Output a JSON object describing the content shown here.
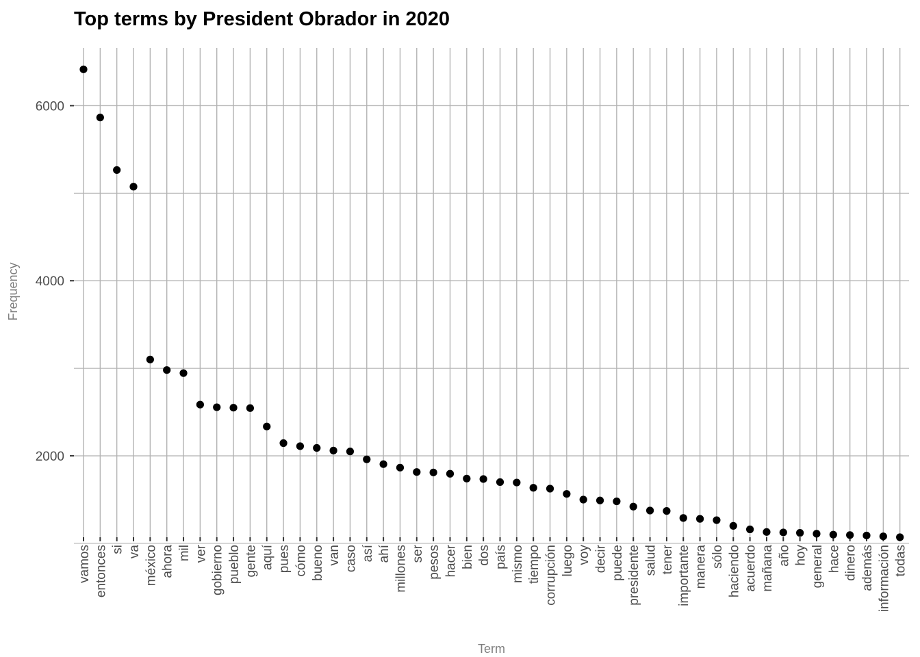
{
  "chart_data": {
    "type": "scatter",
    "title": "Top terms by President Obrador in 2020",
    "xlabel": "Term",
    "ylabel": "Frequency",
    "ylim": [
      1070,
      6660
    ],
    "yticks": [
      2000,
      4000,
      6000
    ],
    "ytick_labels": [
      "2000",
      "4000",
      "6000"
    ],
    "y_minor_ticks": [
      1000,
      3000,
      5000
    ],
    "grid": true,
    "legend": "none",
    "point_color": "#000000",
    "categories": [
      "vamos",
      "entonces",
      "si",
      "va",
      "méxico",
      "ahora",
      "mil",
      "ver",
      "gobierno",
      "pueblo",
      "gente",
      "aquí",
      "pues",
      "cómo",
      "bueno",
      "van",
      "caso",
      "así",
      "ahí",
      "millones",
      "ser",
      "pesos",
      "hacer",
      "bien",
      "dos",
      "país",
      "mismo",
      "tiempo",
      "corrupción",
      "luego",
      "voy",
      "decir",
      "puede",
      "presidente",
      "salud",
      "tener",
      "importante",
      "manera",
      "sólo",
      "haciendo",
      "acuerdo",
      "mañana",
      "año",
      "hoy",
      "general",
      "hace",
      "dinero",
      "además",
      "información",
      "todas"
    ],
    "values": [
      6415,
      5865,
      5265,
      5075,
      3100,
      2980,
      2945,
      2585,
      2555,
      2550,
      2545,
      2335,
      2145,
      2110,
      2090,
      2060,
      2050,
      1960,
      1905,
      1865,
      1815,
      1810,
      1795,
      1740,
      1735,
      1700,
      1695,
      1635,
      1625,
      1565,
      1500,
      1490,
      1480,
      1420,
      1375,
      1370,
      1290,
      1280,
      1265,
      1200,
      1160,
      1130,
      1125,
      1120,
      1110,
      1100,
      1095,
      1090,
      1080,
      1070
    ]
  }
}
